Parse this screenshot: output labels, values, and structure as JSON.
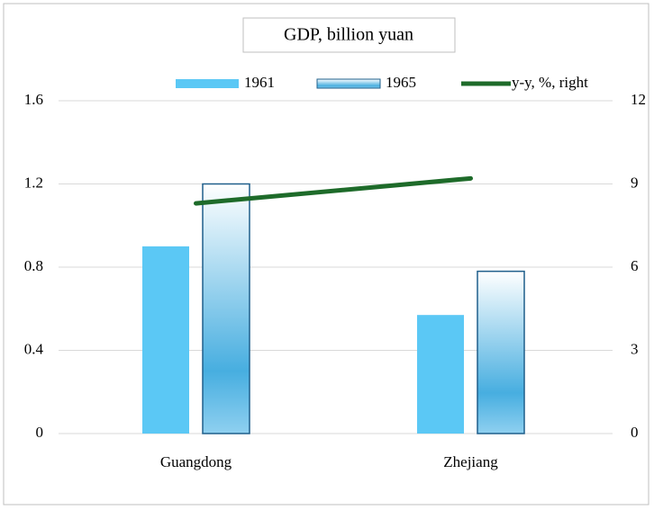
{
  "chart_data": {
    "type": "bar",
    "title": "GDP, billion  yuan",
    "categories": [
      "Guangdong",
      "Zhejiang"
    ],
    "series": [
      {
        "name": "1961",
        "color": "#5bc8f5",
        "values": [
          0.9,
          0.57
        ]
      },
      {
        "name": "1965",
        "color": "#3aa6d8",
        "values": [
          1.2,
          0.78
        ]
      },
      {
        "name": "y-y, %, right",
        "type": "line",
        "axis": "y2",
        "color": "#1e6b2a",
        "values": [
          8.3,
          9.2
        ]
      }
    ],
    "ylim": [
      0,
      1.6
    ],
    "yticks": [
      0,
      0.4,
      0.8,
      1.2,
      1.6
    ],
    "y2lim": [
      0,
      12
    ],
    "y2ticks": [
      0,
      3,
      6,
      9,
      12
    ],
    "grid": true,
    "legend": "top"
  }
}
